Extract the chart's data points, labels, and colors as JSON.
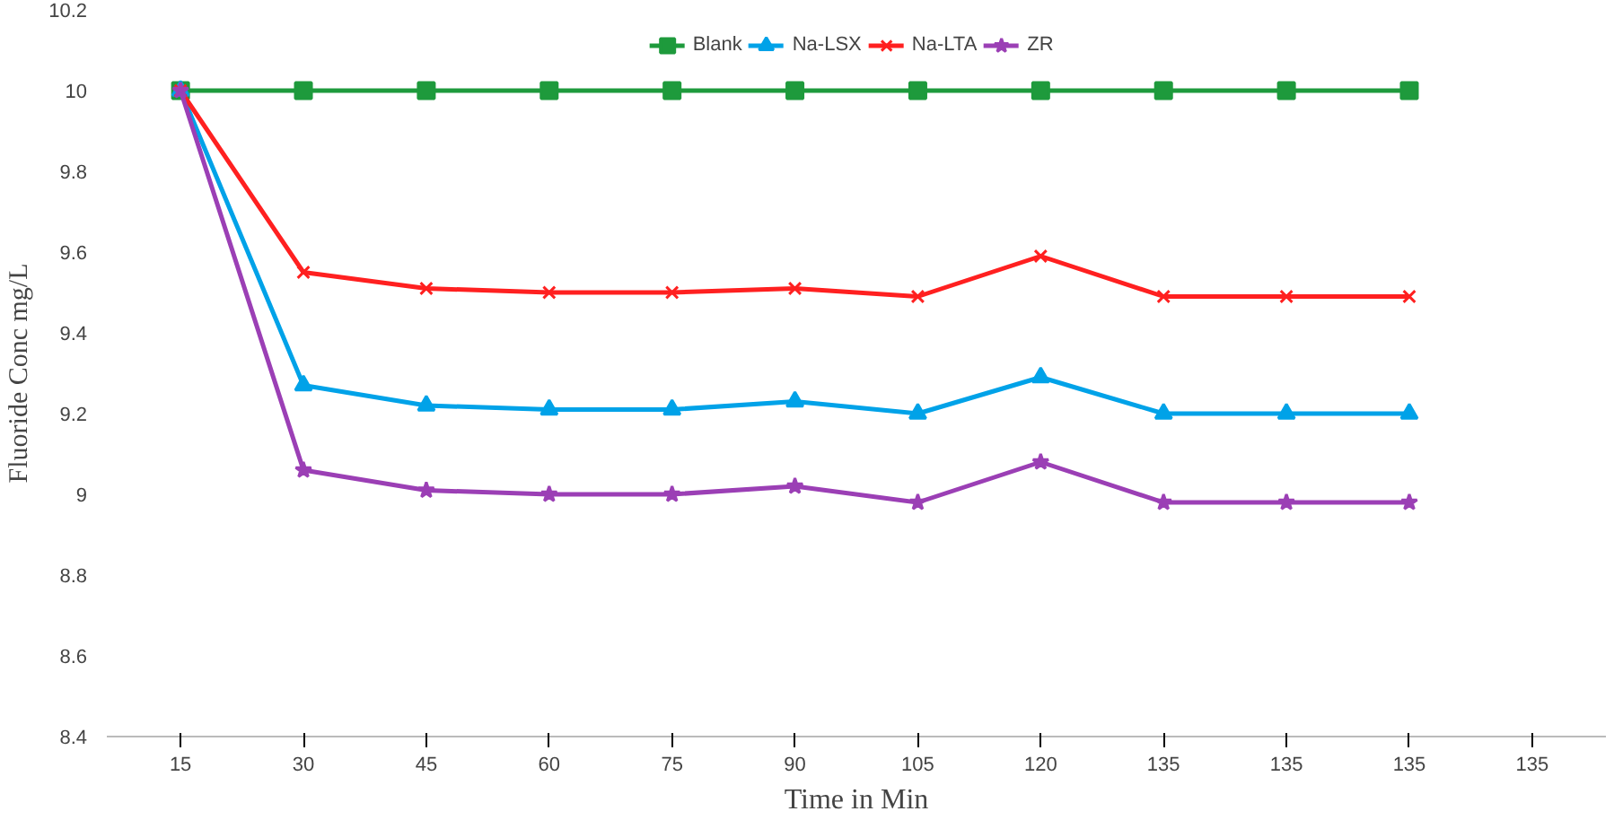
{
  "chart_data": {
    "type": "line",
    "xlabel": "Time in Min",
    "ylabel": "Fluoride Conc mg/L",
    "categories": [
      "15",
      "30",
      "45",
      "60",
      "75",
      "90",
      "105",
      "120",
      "135",
      "135",
      "135",
      "135"
    ],
    "ylim": [
      8.4,
      10.2
    ],
    "yticks": [
      8.4,
      8.6,
      8.8,
      9,
      9.2,
      9.4,
      9.6,
      9.8,
      10,
      10.2
    ],
    "grid": false,
    "legend": "top",
    "series": [
      {
        "name": "Blank",
        "color": "#1e9a3c",
        "marker": "square",
        "values": [
          10,
          10,
          10,
          10,
          10,
          10,
          10,
          10,
          10,
          10,
          10,
          null
        ]
      },
      {
        "name": "Na-LSX",
        "color": "#00a2e8",
        "marker": "triangle",
        "values": [
          10,
          9.27,
          9.22,
          9.21,
          9.21,
          9.23,
          9.2,
          9.29,
          9.2,
          9.2,
          9.2,
          null
        ]
      },
      {
        "name": "Na-LTA",
        "color": "#ff2020",
        "marker": "cross",
        "values": [
          10,
          9.55,
          9.51,
          9.5,
          9.5,
          9.51,
          9.49,
          9.59,
          9.49,
          9.49,
          9.49,
          null
        ]
      },
      {
        "name": "ZR",
        "color": "#9b3fb5",
        "marker": "star",
        "values": [
          10,
          9.06,
          9.01,
          9.0,
          9.0,
          9.02,
          8.98,
          9.08,
          8.98,
          8.98,
          8.98,
          null
        ]
      }
    ]
  }
}
